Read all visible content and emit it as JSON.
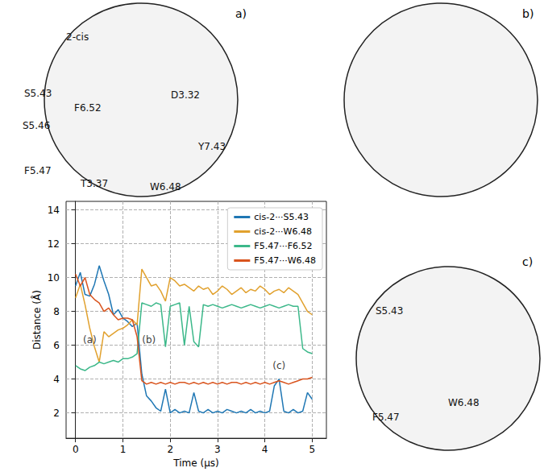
{
  "chart_data": {
    "type": "line",
    "x_label": "Time (μs)",
    "y_label": "Distance (Å)",
    "x": [
      0,
      0.1,
      0.2,
      0.3,
      0.4,
      0.5,
      0.6,
      0.7,
      0.8,
      0.9,
      1.0,
      1.1,
      1.2,
      1.3,
      1.4,
      1.5,
      1.6,
      1.7,
      1.8,
      1.9,
      2.0,
      2.1,
      2.2,
      2.3,
      2.4,
      2.5,
      2.6,
      2.7,
      2.8,
      2.9,
      3.0,
      3.1,
      3.2,
      3.3,
      3.4,
      3.5,
      3.6,
      3.7,
      3.8,
      3.9,
      4.0,
      4.1,
      4.2,
      4.3,
      4.4,
      4.5,
      4.6,
      4.7,
      4.8,
      4.9,
      5.0
    ],
    "series": [
      {
        "name": "cis-2···S5.43",
        "color": "#1f77b4",
        "values": [
          9.5,
          10.3,
          9.0,
          8.9,
          9.6,
          10.7,
          9.8,
          9.0,
          7.8,
          8.1,
          7.6,
          7.4,
          7.1,
          7.3,
          4.3,
          3.0,
          2.7,
          2.3,
          2.1,
          3.4,
          2.0,
          2.2,
          2.0,
          2.1,
          2.0,
          3.2,
          2.1,
          2.0,
          2.2,
          2.0,
          2.1,
          2.0,
          2.2,
          2.1,
          2.0,
          2.1,
          2.0,
          2.2,
          2.0,
          2.1,
          2.0,
          2.1,
          3.6,
          4.0,
          2.1,
          2.0,
          2.2,
          2.0,
          2.1,
          3.2,
          2.8
        ]
      },
      {
        "name": "cis-2···W6.48",
        "color": "#e1a12e",
        "values": [
          8.8,
          9.6,
          8.4,
          7.0,
          5.9,
          5.0,
          6.8,
          6.5,
          6.7,
          6.9,
          7.0,
          7.2,
          7.5,
          7.2,
          10.5,
          10.0,
          9.5,
          9.6,
          9.2,
          8.6,
          10.0,
          9.8,
          9.5,
          9.6,
          9.4,
          9.2,
          9.5,
          9.3,
          9.4,
          9.0,
          9.2,
          9.5,
          9.3,
          9.0,
          9.2,
          9.4,
          9.1,
          9.3,
          9.2,
          9.5,
          9.3,
          9.0,
          9.2,
          9.3,
          9.1,
          9.4,
          9.2,
          9.0,
          8.5,
          8.0,
          7.8
        ]
      },
      {
        "name": "F5.47···F6.52",
        "color": "#3cb88a",
        "values": [
          4.8,
          4.6,
          4.5,
          4.7,
          4.8,
          5.0,
          4.9,
          5.0,
          5.1,
          5.0,
          5.2,
          5.2,
          5.3,
          5.5,
          8.5,
          8.4,
          8.3,
          8.5,
          8.4,
          5.9,
          8.3,
          8.4,
          8.5,
          6.0,
          8.3,
          6.2,
          5.9,
          8.4,
          8.3,
          8.4,
          8.3,
          8.2,
          8.3,
          8.4,
          8.3,
          8.2,
          8.3,
          8.4,
          8.3,
          8.2,
          8.3,
          8.4,
          8.3,
          8.2,
          8.3,
          8.4,
          8.3,
          8.3,
          5.8,
          5.6,
          5.5
        ]
      },
      {
        "name": "F5.47···W6.48",
        "color": "#d9541e",
        "values": [
          10.2,
          9.5,
          10.0,
          9.0,
          8.7,
          8.5,
          8.0,
          8.2,
          7.8,
          7.5,
          7.6,
          7.6,
          7.5,
          6.5,
          3.9,
          3.7,
          3.8,
          3.7,
          3.8,
          3.7,
          3.8,
          3.7,
          3.8,
          3.8,
          3.7,
          3.8,
          3.7,
          3.8,
          3.7,
          3.8,
          3.7,
          3.8,
          3.7,
          3.8,
          3.8,
          3.7,
          3.8,
          3.7,
          3.8,
          3.7,
          3.8,
          3.7,
          3.8,
          3.9,
          3.8,
          3.7,
          3.8,
          3.9,
          4.0,
          4.0,
          4.1
        ]
      }
    ],
    "xlim": [
      -0.2,
      5.3
    ],
    "xticks": [
      0,
      1,
      2,
      3,
      4,
      5
    ],
    "ylim": [
      0.5,
      14.5
    ],
    "yticks": [
      2,
      4,
      6,
      8,
      10,
      12,
      14
    ],
    "grid": true,
    "legend": "upper right",
    "annotations": [
      {
        "text": "(a)",
        "x": 0.3,
        "y": 6.3
      },
      {
        "text": "(b)",
        "x": 1.55,
        "y": 6.3
      },
      {
        "text": "(c)",
        "x": 4.3,
        "y": 4.8
      }
    ]
  },
  "panels": [
    {
      "label": "a)",
      "texts": [
        "2-cis",
        "S5.43",
        "F6.52",
        "D3.32",
        "S5.46",
        "T3.37",
        "Y7.43",
        "F5.47",
        "W6.48"
      ]
    },
    {
      "label": "b)"
    },
    {
      "label": "c)",
      "texts": [
        "S5.43",
        "F5.47",
        "W6.48"
      ]
    }
  ]
}
